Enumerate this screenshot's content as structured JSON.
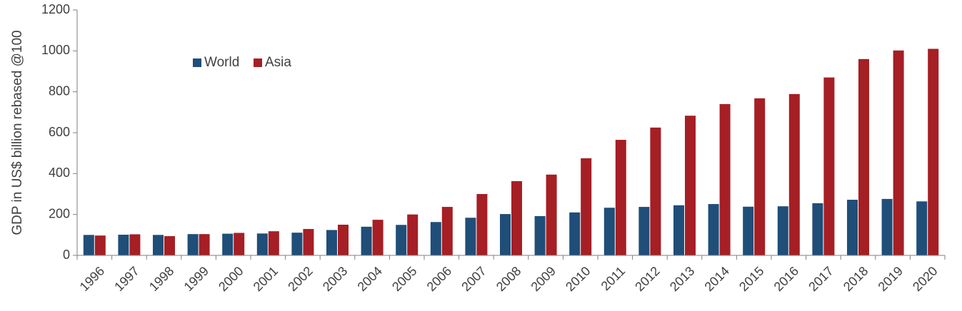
{
  "chart_data": {
    "type": "bar",
    "title": "",
    "xlabel": "",
    "ylabel": "GDP in US$ billion rebased @100",
    "ylim": [
      0,
      1200
    ],
    "yticks": [
      0,
      200,
      400,
      600,
      800,
      1000,
      1200
    ],
    "grid": false,
    "legend_position": "top-left",
    "categories": [
      "1996",
      "1997",
      "1998",
      "1999",
      "2000",
      "2001",
      "2002",
      "2003",
      "2004",
      "2005",
      "2006",
      "2007",
      "2008",
      "2009",
      "2010",
      "2011",
      "2012",
      "2013",
      "2014",
      "2015",
      "2016",
      "2017",
      "2018",
      "2019",
      "2020"
    ],
    "series": [
      {
        "name": "World",
        "color": "#1f4e79",
        "values": [
          100,
          101,
          100,
          104,
          106,
          107,
          111,
          124,
          140,
          149,
          163,
          184,
          202,
          192,
          210,
          233,
          237,
          245,
          251,
          238,
          240,
          255,
          272,
          276,
          264
        ]
      },
      {
        "name": "Asia",
        "color": "#a51f24",
        "values": [
          97,
          103,
          94,
          104,
          110,
          118,
          129,
          150,
          174,
          200,
          237,
          300,
          363,
          395,
          475,
          565,
          625,
          683,
          740,
          768,
          789,
          870,
          960,
          1002,
          1010
        ]
      }
    ]
  }
}
